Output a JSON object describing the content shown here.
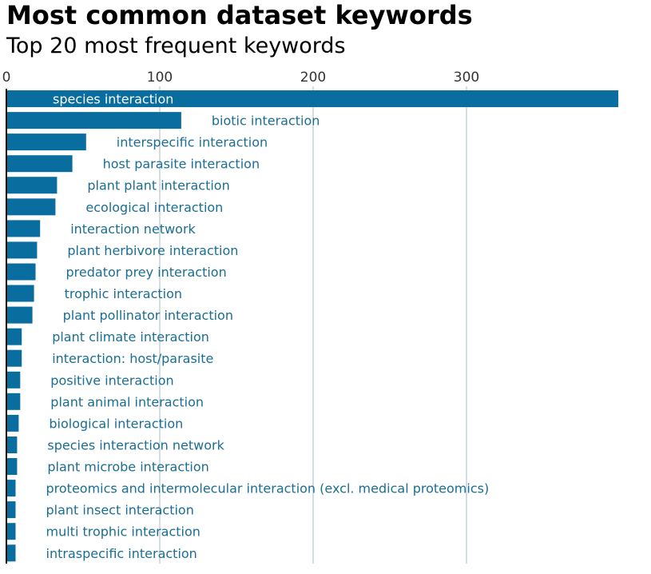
{
  "title": "Most common dataset keywords",
  "subtitle": "Top 20 most frequent keywords",
  "colors": {
    "bar": "#0a6d9f",
    "label_inside": "#ffffff",
    "label_outside": "#1a6e94",
    "grid": "#a8bcc6",
    "axis": "#000000"
  },
  "chart_data": {
    "type": "bar",
    "orientation": "horizontal",
    "title": "Most common dataset keywords",
    "subtitle": "Top 20 most frequent keywords",
    "xlim": [
      0,
      400
    ],
    "xticks": [
      0,
      100,
      200,
      300
    ],
    "grid": true,
    "categories": [
      "species interaction",
      "biotic interaction",
      "interspecific interaction",
      "host parasite interaction",
      "plant plant interaction",
      "ecological interaction",
      "interaction network",
      "plant herbivore interaction",
      "predator prey interaction",
      "trophic interaction",
      "plant pollinator interaction",
      "plant climate interaction",
      "interaction: host/parasite",
      "positive interaction",
      "plant animal interaction",
      "biological interaction",
      "species interaction network",
      "plant microbe interaction",
      "proteomics and intermolecular interaction (excl. medical proteomics)",
      "plant insect interaction",
      "multi trophic interaction",
      "intraspecific interaction"
    ],
    "values": [
      399,
      114,
      52,
      43,
      33,
      32,
      22,
      20,
      19,
      18,
      17,
      10,
      10,
      9,
      9,
      8,
      7,
      7,
      6,
      6,
      6,
      6
    ]
  }
}
